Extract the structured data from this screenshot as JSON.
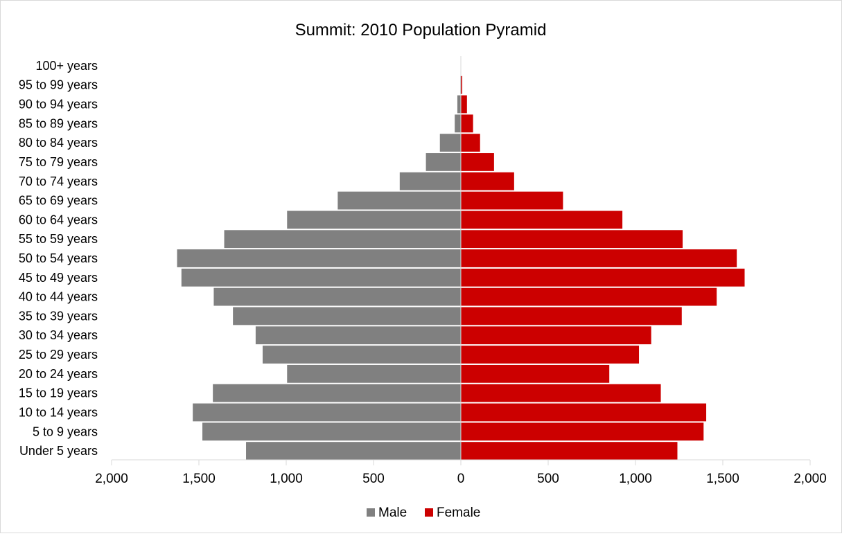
{
  "chart_data": {
    "type": "bar",
    "orientation": "horizontal",
    "title": "Summit: 2010 Population Pyramid",
    "categories": [
      "Under 5 years",
      "5 to 9 years",
      "10 to 14 years",
      "15 to 19 years",
      "20 to 24 years",
      "25 to 29 years",
      "30 to 34 years",
      "35 to 39 years",
      "40 to 44 years",
      "45 to 49 years",
      "50 to 54 years",
      "55 to 59 years",
      "60 to 64 years",
      "65 to 69 years",
      "70 to 74 years",
      "75 to 79 years",
      "80 to 84 years",
      "85 to 89 years",
      "90 to 94 years",
      "95 to 99 years",
      "100+ years"
    ],
    "series": [
      {
        "name": "Male",
        "color": "#808080",
        "values": [
          1230,
          1480,
          1535,
          1420,
          995,
          1135,
          1175,
          1305,
          1415,
          1600,
          1625,
          1355,
          995,
          705,
          350,
          200,
          120,
          35,
          20,
          3,
          0
        ]
      },
      {
        "name": "Female",
        "color": "#cc0000",
        "values": [
          1240,
          1390,
          1405,
          1145,
          850,
          1020,
          1090,
          1265,
          1465,
          1625,
          1580,
          1270,
          925,
          585,
          305,
          190,
          110,
          70,
          35,
          8,
          0
        ]
      }
    ],
    "xaxis": {
      "ticks": [
        -2000,
        -1500,
        -1000,
        -500,
        0,
        500,
        1000,
        1500,
        2000
      ],
      "tick_labels": [
        "2,000",
        "1,500",
        "1,000",
        "500",
        "0",
        "500",
        "1,000",
        "1,500",
        "2,000"
      ],
      "range": [
        -2000,
        2000
      ]
    },
    "xlabel": "",
    "ylabel": "",
    "grid": false,
    "legend": {
      "position": "bottom",
      "entries": [
        "Male",
        "Female"
      ]
    }
  }
}
